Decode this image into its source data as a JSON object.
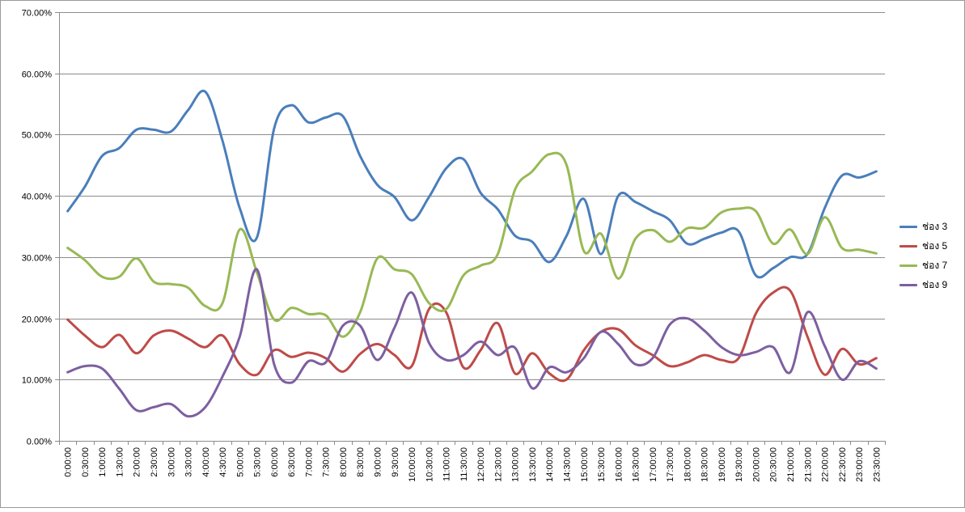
{
  "chart_data": {
    "type": "line",
    "title": "",
    "xlabel": "",
    "ylabel": "",
    "ylim": [
      0,
      70
    ],
    "y_tick_labels": [
      "0.00%",
      "10.00%",
      "20.00%",
      "30.00%",
      "40.00%",
      "50.00%",
      "60.00%",
      "70.00%"
    ],
    "grid": true,
    "legend_position": "right",
    "categories": [
      "0:00:00",
      "0:30:00",
      "1:00:00",
      "1:30:00",
      "2:00:00",
      "2:30:00",
      "3:00:00",
      "3:30:00",
      "4:00:00",
      "4:30:00",
      "5:00:00",
      "5:30:00",
      "6:00:00",
      "6:30:00",
      "7:00:00",
      "7:30:00",
      "8:00:00",
      "8:30:00",
      "9:00:00",
      "9:30:00",
      "10:00:00",
      "10:30:00",
      "11:00:00",
      "11:30:00",
      "12:00:00",
      "12:30:00",
      "13:00:00",
      "13:30:00",
      "14:00:00",
      "14:30:00",
      "15:00:00",
      "15:30:00",
      "16:00:00",
      "16:30:00",
      "17:00:00",
      "17:30:00",
      "18:00:00",
      "18:30:00",
      "19:00:00",
      "19:30:00",
      "20:00:00",
      "20:30:00",
      "21:00:00",
      "21:30:00",
      "22:00:00",
      "22:30:00",
      "23:00:00",
      "23:30:00"
    ],
    "series": [
      {
        "name": "ช่อง 3",
        "color": "#4a7ebb",
        "values": [
          37.5,
          41.5,
          46.5,
          47.8,
          50.8,
          50.8,
          50.5,
          54.0,
          57.0,
          49.0,
          38.0,
          33.2,
          51.0,
          54.8,
          52.0,
          52.8,
          53.0,
          46.5,
          41.8,
          39.8,
          36.0,
          39.8,
          44.5,
          46.0,
          40.5,
          37.8,
          33.5,
          32.5,
          29.2,
          33.5,
          39.5,
          30.5,
          40.0,
          39.0,
          37.5,
          36.0,
          32.2,
          33.0,
          34.0,
          34.2,
          27.0,
          28.2,
          30.0,
          30.5,
          38.0,
          43.3,
          43.0,
          44.0
        ]
      },
      {
        "name": "ช่อง 5",
        "color": "#be4b48",
        "values": [
          19.8,
          17.2,
          15.3,
          17.3,
          14.3,
          17.2,
          18.0,
          16.7,
          15.3,
          17.2,
          12.5,
          10.8,
          14.8,
          13.7,
          14.4,
          13.5,
          11.3,
          14.2,
          15.8,
          14.0,
          12.2,
          21.5,
          21.0,
          12.0,
          14.8,
          19.2,
          11.0,
          14.3,
          11.0,
          10.0,
          14.8,
          17.8,
          18.2,
          15.6,
          14.0,
          12.2,
          12.8,
          14.0,
          13.2,
          13.5,
          20.8,
          24.2,
          24.5,
          17.0,
          10.8,
          15.0,
          12.5,
          13.5
        ]
      },
      {
        "name": "ช่อง 7",
        "color": "#98b954",
        "values": [
          31.5,
          29.5,
          26.8,
          26.8,
          29.8,
          26.0,
          25.6,
          25.0,
          22.0,
          22.5,
          34.5,
          27.5,
          19.8,
          21.7,
          20.7,
          20.5,
          17.0,
          21.0,
          29.8,
          28.0,
          27.2,
          22.5,
          21.5,
          27.0,
          28.6,
          30.5,
          41.0,
          44.0,
          46.8,
          45.0,
          31.0,
          33.8,
          26.5,
          33.0,
          34.4,
          32.5,
          34.7,
          34.8,
          37.3,
          37.9,
          37.5,
          32.2,
          34.5,
          30.5,
          36.5,
          31.5,
          31.2,
          30.6
        ]
      },
      {
        "name": "ช่อง 9",
        "color": "#7d5fa0",
        "values": [
          11.2,
          12.2,
          11.8,
          8.5,
          5.0,
          5.5,
          6.0,
          4.0,
          5.5,
          10.5,
          17.0,
          28.0,
          12.5,
          9.5,
          13.0,
          12.8,
          18.8,
          18.8,
          13.2,
          18.5,
          24.2,
          16.0,
          13.2,
          14.0,
          16.2,
          14.0,
          15.2,
          8.6,
          12.0,
          11.2,
          13.5,
          17.8,
          15.8,
          12.5,
          13.5,
          19.0,
          20.0,
          18.0,
          15.3,
          14.0,
          14.5,
          15.3,
          11.2,
          21.0,
          15.5,
          10.0,
          13.0,
          11.8
        ]
      }
    ]
  }
}
